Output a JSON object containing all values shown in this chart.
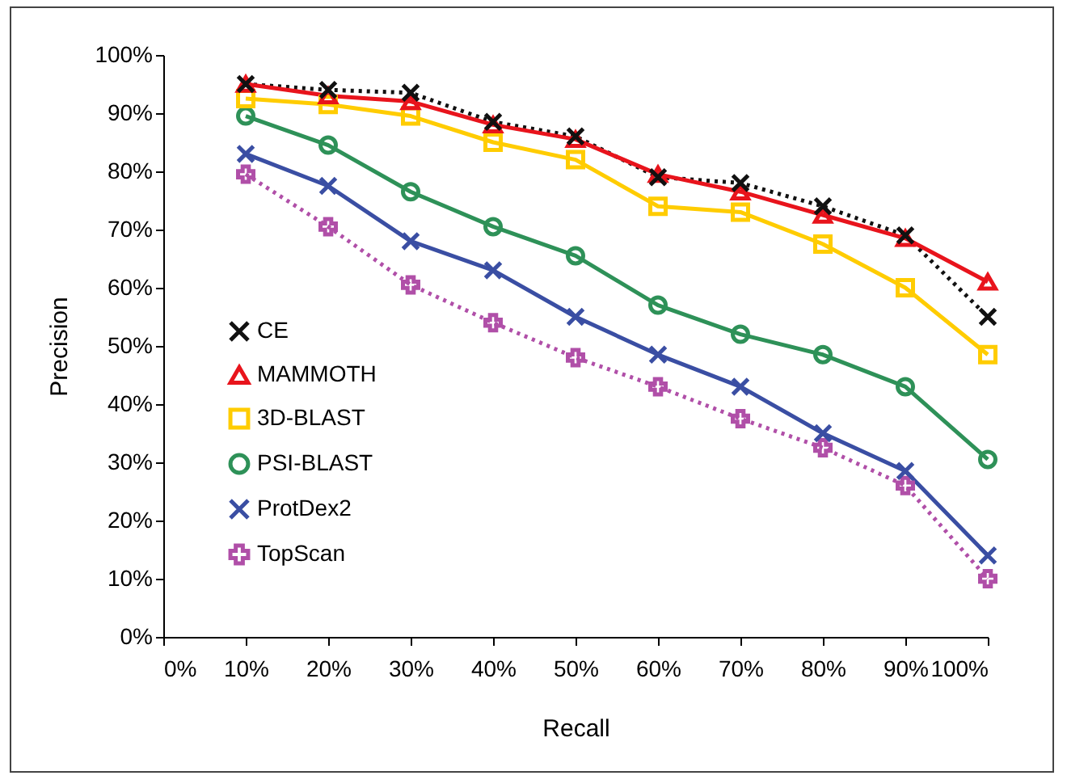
{
  "chart_data": {
    "type": "line",
    "xlabel": "Recall",
    "ylabel": "Precision",
    "x": [
      10,
      20,
      30,
      40,
      50,
      60,
      70,
      80,
      90,
      100
    ],
    "xlim": [
      0,
      100
    ],
    "ylim": [
      0,
      100
    ],
    "xticks": [
      {
        "value": 0,
        "label": "0%"
      },
      {
        "value": 10,
        "label": "10%"
      },
      {
        "value": 20,
        "label": "20%"
      },
      {
        "value": 30,
        "label": "30%"
      },
      {
        "value": 40,
        "label": "40%"
      },
      {
        "value": 50,
        "label": "50%"
      },
      {
        "value": 60,
        "label": "60%"
      },
      {
        "value": 70,
        "label": "70%"
      },
      {
        "value": 80,
        "label": "80%"
      },
      {
        "value": 90,
        "label": "90%"
      },
      {
        "value": 100,
        "label": "100%"
      }
    ],
    "yticks": [
      {
        "value": 0,
        "label": "0%"
      },
      {
        "value": 10,
        "label": "10%"
      },
      {
        "value": 20,
        "label": "20%"
      },
      {
        "value": 30,
        "label": "30%"
      },
      {
        "value": 40,
        "label": "40%"
      },
      {
        "value": 50,
        "label": "50%"
      },
      {
        "value": 60,
        "label": "60%"
      },
      {
        "value": 70,
        "label": "70%"
      },
      {
        "value": 80,
        "label": "80%"
      },
      {
        "value": 90,
        "label": "90%"
      },
      {
        "value": 100,
        "label": "100%"
      }
    ],
    "grid": false,
    "legend": "bottom left",
    "series": [
      {
        "name": "CE",
        "color": "#111111",
        "marker": "x",
        "line_style": "dotted",
        "values": [
          95,
          94,
          93.5,
          88.5,
          86,
          79,
          78,
          74,
          69,
          55
        ]
      },
      {
        "name": "MAMMOTH",
        "color": "#e8141c",
        "marker": "triangle",
        "line_style": "solid",
        "values": [
          95,
          93,
          92,
          88,
          85.5,
          79.5,
          76.5,
          72.5,
          68.5,
          61
        ]
      },
      {
        "name": "3D-BLAST",
        "color": "#ffcc00",
        "marker": "square",
        "line_style": "solid",
        "values": [
          92.5,
          91.5,
          89.5,
          85,
          82,
          74,
          73,
          67.5,
          60,
          48.5
        ]
      },
      {
        "name": "PSI-BLAST",
        "color": "#2e9158",
        "marker": "circle",
        "line_style": "solid",
        "values": [
          89.5,
          84.5,
          76.5,
          70.5,
          65.5,
          57,
          52,
          48.5,
          43,
          30.5
        ]
      },
      {
        "name": "ProtDex2",
        "color": "#3a4ea3",
        "marker": "x",
        "line_style": "solid",
        "values": [
          83,
          77.5,
          68,
          63,
          55,
          48.5,
          43,
          35,
          28.5,
          14
        ]
      },
      {
        "name": "TopScan",
        "color": "#b04fa8",
        "marker": "cross",
        "line_style": "dotted",
        "values": [
          79.5,
          70.5,
          60.5,
          54,
          48,
          43,
          37.5,
          32.5,
          26,
          10
        ]
      }
    ]
  }
}
